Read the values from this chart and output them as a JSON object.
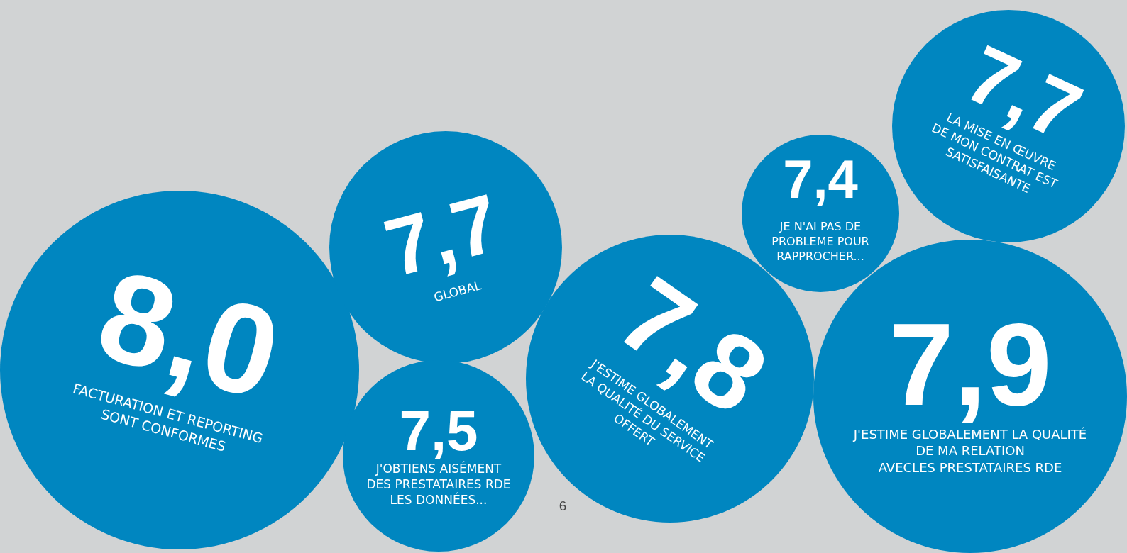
{
  "chart_data": {
    "type": "other",
    "categories": [
      "FACTURATION ET REPORTING\nSONT CONFORMES",
      "GLOBAL",
      "J'OBTIENS AISÉMENT\nDES PRESTATAIRES RDE\nLES DONNÉES...",
      "J'ESTIME GLOBALEMENT\nLA QUALITÉ DU SERVICE\nOFFERT",
      "JE N'AI PAS DE\nPROBLEME POUR\nRAPPROCHER...",
      "LA MISE EN ŒUVRE\nDE MON CONTRAT EST\nSATISFAISANTE",
      "J'ESTIME GLOBALEMENT LA QUALITÉ\nDE MA RELATION\nAVECLES PRESTATAIRES RDE"
    ],
    "values": [
      8.0,
      7.7,
      7.5,
      7.8,
      7.4,
      7.7,
      7.9
    ],
    "color": "#0086c0",
    "data_labels": true,
    "value_labels": [
      "8,0",
      "7,7",
      "7,5",
      "7,8",
      "7,4",
      "7,7",
      "7,9"
    ],
    "annotations": [
      "6"
    ]
  }
}
